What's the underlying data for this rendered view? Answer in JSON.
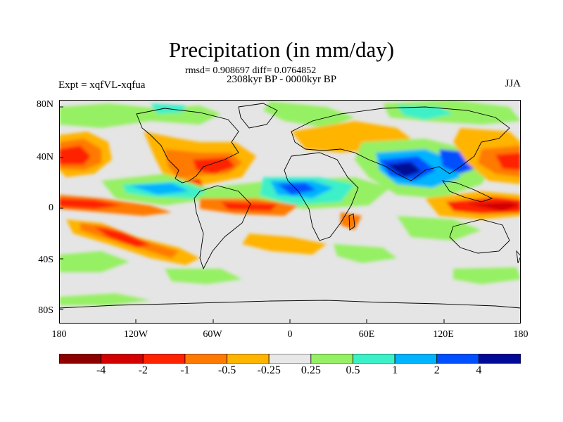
{
  "title": "Precipitation (in mm/day)",
  "stats_line": "rmsd= 0.908697 diff= 0.0764852",
  "period_line": "2308kyr BP - 0000kyr BP",
  "expt_label": "Expt = xqfVL-xqfua",
  "season": "JJA",
  "lat_ticks": [
    "80N",
    "40N",
    "0",
    "40S",
    "80S"
  ],
  "lon_ticks": [
    "180",
    "120W",
    "60W",
    "0",
    "60E",
    "120E",
    "180"
  ],
  "colorbar": {
    "colors": [
      "#8c0000",
      "#d20000",
      "#ff2200",
      "#ff7a00",
      "#ffb400",
      "#e8e8e8",
      "#96f064",
      "#3cf0c8",
      "#00b4ff",
      "#0050ff",
      "#000a96"
    ],
    "labels": [
      "-4",
      "-2",
      "-1",
      "-0.5",
      "-0.25",
      "0.25",
      "0.5",
      "1",
      "2",
      "4"
    ]
  },
  "colors": {
    "background_field": "#e5e5e5",
    "coastline": "#000000"
  }
}
